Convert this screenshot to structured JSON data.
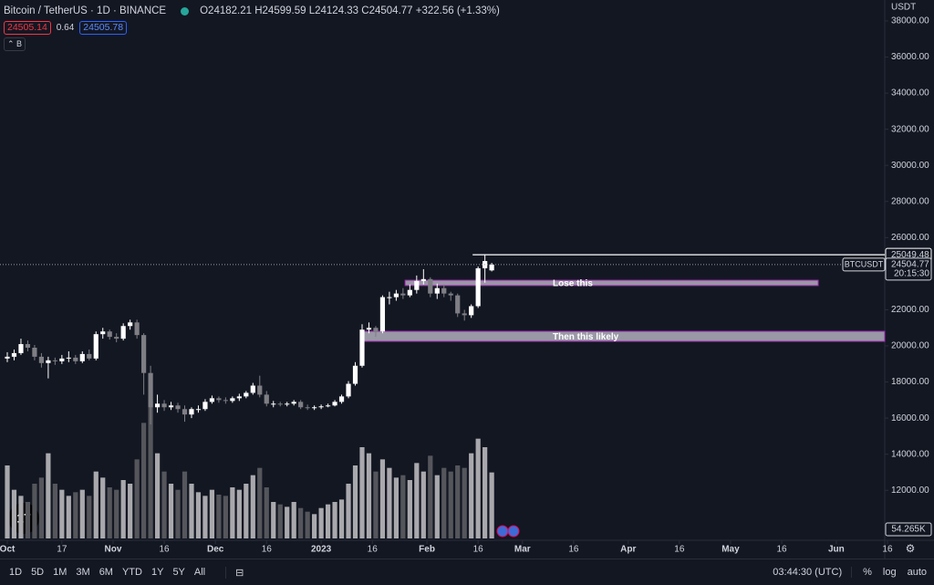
{
  "header": {
    "symbol": "Bitcoin / TetherUS · 1D · BINANCE",
    "ohlc_labels": [
      "O",
      "H",
      "L",
      "C"
    ],
    "change": "+322.56 (+1.33%)",
    "sell": "24505.14",
    "spread": "0.64",
    "buy": "24505.78",
    "indicator": "B"
  },
  "chart_data": {
    "type": "candlestick",
    "y_unit": "USDT",
    "symbol_tag": "BTCUSDT",
    "countdown": "20:15:30",
    "up_color": "#ffffff",
    "down_color": "#7e7e84",
    "volume_up_color": "#a9a9ad",
    "volume_down_color": "#55565c",
    "x": [
      0,
      2,
      4,
      6,
      8,
      10,
      12,
      14,
      16,
      18,
      20,
      22,
      24,
      26,
      28,
      30,
      32,
      34,
      36,
      38,
      40,
      42,
      44,
      46,
      48,
      50,
      52,
      54,
      56,
      58,
      60,
      62,
      64,
      66,
      68,
      70,
      72,
      74,
      76,
      78,
      80,
      82,
      84,
      86,
      88,
      90,
      92,
      94,
      96,
      98,
      100,
      102,
      104,
      106,
      108,
      110,
      112,
      114,
      116,
      118,
      120,
      122,
      124,
      126,
      128,
      130,
      132,
      134,
      136,
      138,
      140,
      142
    ],
    "open": [
      19300,
      19400,
      19600,
      20100,
      19900,
      19400,
      19050,
      19200,
      19150,
      19300,
      19350,
      19150,
      19550,
      19300,
      20650,
      20800,
      20500,
      20400,
      21100,
      21300,
      20600,
      18500,
      16600,
      16800,
      16600,
      16700,
      16500,
      16200,
      16500,
      16500,
      16900,
      17100,
      17000,
      16950,
      17100,
      17200,
      17400,
      17800,
      17300,
      16800,
      16800,
      16750,
      16800,
      16900,
      16600,
      16550,
      16600,
      16650,
      16700,
      16900,
      17200,
      17900,
      18900,
      20900,
      21000,
      20800,
      22700,
      22700,
      22900,
      22800,
      23100,
      23600,
      23700,
      22900,
      23200,
      22900,
      22800,
      21800,
      21700,
      22200,
      24300,
      24182.21
    ],
    "high": [
      19650,
      19800,
      20400,
      20300,
      20050,
      19600,
      19400,
      19350,
      19500,
      19700,
      19500,
      19700,
      19800,
      20800,
      21000,
      20900,
      20700,
      21250,
      21450,
      21450,
      20700,
      18900,
      17300,
      17000,
      16900,
      16850,
      16700,
      16600,
      16700,
      17050,
      17250,
      17200,
      17150,
      17200,
      17350,
      17500,
      17950,
      18350,
      17500,
      16950,
      16900,
      16900,
      17000,
      17000,
      16750,
      16700,
      16750,
      16800,
      17000,
      17300,
      18050,
      19100,
      21200,
      21300,
      21100,
      22800,
      23000,
      23100,
      23200,
      23400,
      23900,
      24250,
      23800,
      23450,
      23400,
      23000,
      22900,
      22000,
      22300,
      24400,
      25049.48,
      24599.59
    ],
    "low": [
      19100,
      19200,
      19500,
      19700,
      19200,
      18800,
      18200,
      18950,
      19000,
      19100,
      19000,
      19050,
      19200,
      19200,
      20400,
      20350,
      20200,
      20300,
      20900,
      20400,
      17300,
      15650,
      16300,
      16400,
      16450,
      16300,
      15800,
      16000,
      16300,
      16400,
      16800,
      16850,
      16800,
      16850,
      16950,
      17100,
      17300,
      17150,
      16650,
      16600,
      16650,
      16650,
      16700,
      16500,
      16450,
      16450,
      16500,
      16600,
      16650,
      16800,
      17100,
      17800,
      18800,
      20700,
      20500,
      20700,
      22300,
      22500,
      22600,
      22700,
      22900,
      23400,
      22700,
      22600,
      22700,
      22500,
      21600,
      21400,
      21550,
      22100,
      23500,
      24124.33
    ],
    "close": [
      19400,
      19600,
      20100,
      19900,
      19400,
      19050,
      19200,
      19150,
      19300,
      19350,
      19150,
      19550,
      19300,
      20650,
      20800,
      20500,
      20400,
      21100,
      21300,
      20600,
      18500,
      16600,
      16800,
      16600,
      16700,
      16500,
      16200,
      16500,
      16500,
      16900,
      17100,
      17000,
      16950,
      17100,
      17200,
      17400,
      17800,
      17300,
      16800,
      16800,
      16750,
      16800,
      16900,
      16600,
      16550,
      16600,
      16650,
      16700,
      16900,
      17200,
      17900,
      18900,
      20900,
      21000,
      20800,
      22700,
      22700,
      22900,
      22800,
      23100,
      23600,
      23700,
      22900,
      23200,
      22900,
      22800,
      21800,
      21700,
      22200,
      24300,
      24700,
      24504.77
    ],
    "volume": [
      60,
      40,
      35,
      30,
      45,
      50,
      70,
      45,
      40,
      35,
      38,
      40,
      35,
      55,
      50,
      42,
      40,
      48,
      45,
      65,
      95,
      113,
      70,
      55,
      45,
      40,
      55,
      45,
      38,
      35,
      40,
      36,
      35,
      42,
      40,
      45,
      52,
      58,
      42,
      30,
      28,
      26,
      30,
      25,
      22,
      20,
      25,
      28,
      30,
      32,
      45,
      60,
      75,
      70,
      55,
      65,
      58,
      50,
      52,
      48,
      62,
      55,
      68,
      52,
      58,
      55,
      60,
      58,
      70,
      82,
      75,
      54.265
    ],
    "volume_value_labels": {
      "71": "54.265K"
    },
    "volume_lim": [
      0,
      150
    ],
    "xlim": [
      -2.14,
      257.2
    ],
    "xticks": [
      {
        "value": 0,
        "label": "Oct"
      },
      {
        "value": 16,
        "label": "17"
      },
      {
        "value": 31,
        "label": "Nov"
      },
      {
        "value": 46,
        "label": "16"
      },
      {
        "value": 61,
        "label": "Dec"
      },
      {
        "value": 76,
        "label": "16"
      },
      {
        "value": 92,
        "label": "2023"
      },
      {
        "value": 107,
        "label": "16"
      },
      {
        "value": 123,
        "label": "Feb"
      },
      {
        "value": 138,
        "label": "16"
      },
      {
        "value": 151,
        "label": "Mar"
      },
      {
        "value": 166,
        "label": "16"
      },
      {
        "value": 182,
        "label": "Apr"
      },
      {
        "value": 197,
        "label": "16"
      },
      {
        "value": 212,
        "label": "May"
      },
      {
        "value": 227,
        "label": "16"
      },
      {
        "value": 243,
        "label": "Jun"
      },
      {
        "value": 258,
        "label": "16"
      }
    ],
    "ylim": [
      9232,
      39161
    ],
    "yticks": [
      {
        "value": 12000,
        "label": "12000.00"
      },
      {
        "value": 14000,
        "label": "14000.00"
      },
      {
        "value": 16000,
        "label": "16000.00"
      },
      {
        "value": 18000,
        "label": "18000.00"
      },
      {
        "value": 20000,
        "label": "20000.00"
      },
      {
        "value": 22000,
        "label": "22000.00"
      },
      {
        "value": 24000,
        "label": "24000.00"
      },
      {
        "value": 26000,
        "label": "26000.00"
      },
      {
        "value": 28000,
        "label": "28000.00"
      },
      {
        "value": 30000,
        "label": "30000.00"
      },
      {
        "value": 32000,
        "label": "32000.00"
      },
      {
        "value": 34000,
        "label": "34000.00"
      },
      {
        "value": 36000,
        "label": "36000.00"
      },
      {
        "value": 38000,
        "label": "38000.00"
      }
    ],
    "resistance": {
      "value": 25049.48,
      "x": [
        136.4,
        257.2
      ]
    },
    "annotations": [
      {
        "text": "Lose this",
        "x": [
          116.6,
          237.7
        ],
        "y": [
          23340,
          23640
        ]
      },
      {
        "text": "Then this likely",
        "x": [
          104,
          257.2
        ],
        "y": [
          20250,
          20810
        ]
      }
    ]
  },
  "toolbar": {
    "ranges": [
      "1D",
      "5D",
      "1M",
      "3M",
      "6M",
      "YTD",
      "1Y",
      "5Y",
      "All"
    ],
    "time": "03:44:30 (UTC)",
    "scale_options": [
      "%",
      "log",
      "auto"
    ]
  }
}
